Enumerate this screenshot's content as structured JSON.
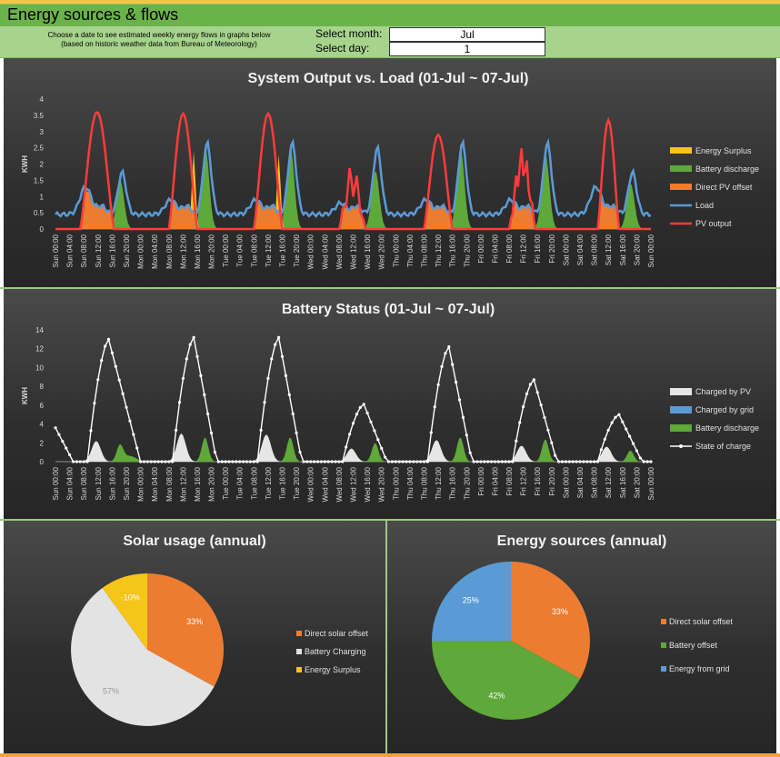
{
  "header": {
    "title": "Energy sources & flows",
    "hint_line1": "Choose a date to see estimated weekly energy flows in graphs below",
    "hint_line2": "(based on historic weather data from Bureau of Meteorology)",
    "month_label": "Select month:",
    "month_value": "Jul",
    "day_label": "Select day:",
    "day_value": "1"
  },
  "chart_data": [
    {
      "type": "area",
      "title": "System Output vs. Load (01-Jul ~ 07-Jul)",
      "ylabel": "KWH",
      "ylim": [
        0,
        4
      ],
      "yticks": [
        "0",
        "0.5",
        "1",
        "1.5",
        "2",
        "2.5",
        "3",
        "3.5",
        "4"
      ],
      "legend_position": "right",
      "x_labels": [
        "Sun 00:00",
        "Sun 04:00",
        "Sun 08:00",
        "Sun 12:00",
        "Sun 16:00",
        "Sun 20:00",
        "Mon 00:00",
        "Mon 04:00",
        "Mon 08:00",
        "Mon 12:00",
        "Mon 16:00",
        "Mon 20:00",
        "Tue 00:00",
        "Tue 04:00",
        "Tue 08:00",
        "Tue 12:00",
        "Tue 16:00",
        "Tue 20:00",
        "Wed 00:00",
        "Wed 04:00",
        "Wed 08:00",
        "Wed 12:00",
        "Wed 16:00",
        "Wed 20:00",
        "Thu 00:00",
        "Thu 04:00",
        "Thu 08:00",
        "Thu 12:00",
        "Thu 16:00",
        "Thu 20:00",
        "Fri 00:00",
        "Fri 04:00",
        "Fri 08:00",
        "Fri 12:00",
        "Fri 16:00",
        "Fri 20:00",
        "Sat 00:00",
        "Sat 04:00",
        "Sat 08:00",
        "Sat 12:00",
        "Sat 16:00",
        "Sat 20:00",
        "Sun 00:00"
      ],
      "days": [
        {
          "pv_peak": 3.6,
          "pv_start": 7,
          "pv_end": 16.5,
          "load_am": 1.3,
          "load_pm": 1.75,
          "batt_peak": 1.5,
          "surplus_peak": 0
        },
        {
          "pv_peak": 3.55,
          "pv_start": 8,
          "pv_end": 16,
          "load_am": 0.9,
          "load_pm": 2.65,
          "batt_peak": 2.55,
          "surplus_peak": 2.4
        },
        {
          "pv_peak": 3.55,
          "pv_start": 8,
          "pv_end": 16,
          "load_am": 0.9,
          "load_pm": 2.65,
          "batt_peak": 2.55,
          "surplus_peak": 2.3
        },
        {
          "pv_peak": 2.0,
          "pv_start": 8,
          "pv_end": 15.5,
          "load_am": 0.8,
          "load_pm": 2.5,
          "batt_peak": 1.8,
          "surplus_peak": 0
        },
        {
          "pv_peak": 2.9,
          "pv_start": 8,
          "pv_end": 16,
          "load_am": 0.9,
          "load_pm": 2.65,
          "batt_peak": 2.5,
          "surplus_peak": 0
        },
        {
          "pv_peak": 2.55,
          "pv_start": 8,
          "pv_end": 15.5,
          "load_am": 0.9,
          "load_pm": 2.65,
          "batt_peak": 2.3,
          "surplus_peak": 0
        },
        {
          "pv_peak": 3.35,
          "pv_start": 9,
          "pv_end": 15,
          "load_am": 1.3,
          "load_pm": 1.75,
          "batt_peak": 1.4,
          "surplus_peak": 0
        }
      ],
      "series_names": [
        "Energy Surplus",
        "Battery discharge",
        "Direct PV offset",
        "Load",
        "PV output"
      ],
      "colors": {
        "surplus": "#f5c518",
        "battery": "#5fa83a",
        "direct": "#ec7c30",
        "load": "#5b9bd5",
        "pv": "#ff3b3b"
      }
    },
    {
      "type": "area",
      "title": "Battery Status (01-Jul ~ 07-Jul)",
      "ylabel": "KWH",
      "ylim": [
        0,
        14
      ],
      "yticks": [
        "0",
        "2",
        "4",
        "6",
        "8",
        "10",
        "12",
        "14"
      ],
      "legend_position": "right",
      "days": [
        {
          "soc_peak": 13.0,
          "pv_peak": 2.2,
          "batt_peak": 1.7,
          "start_soc": 3.6
        },
        {
          "soc_peak": 13.2,
          "pv_peak": 3.0,
          "batt_peak": 2.6,
          "start_soc": 0
        },
        {
          "soc_peak": 13.2,
          "pv_peak": 2.9,
          "batt_peak": 2.6,
          "start_soc": 0
        },
        {
          "soc_peak": 6.1,
          "pv_peak": 1.4,
          "batt_peak": 2.0,
          "start_soc": 0
        },
        {
          "soc_peak": 12.2,
          "pv_peak": 2.3,
          "batt_peak": 2.6,
          "start_soc": 0
        },
        {
          "soc_peak": 8.7,
          "pv_peak": 1.7,
          "batt_peak": 2.4,
          "start_soc": 0
        },
        {
          "soc_peak": 5.0,
          "pv_peak": 1.6,
          "batt_peak": 1.2,
          "start_soc": 0
        }
      ],
      "series_names": [
        "Charged by PV",
        "Charged by grid",
        "Battery discharge",
        "State of charge"
      ],
      "colors": {
        "pv": "#e6e6e6",
        "grid": "#5b9bd5",
        "battery": "#5fa83a",
        "soc": "#ffffff"
      }
    },
    {
      "type": "pie",
      "title": "Solar usage (annual)",
      "legend_position": "right",
      "slices": [
        {
          "label": "Direct solar offset",
          "value": 33,
          "text": "33%",
          "color": "#ec7c30"
        },
        {
          "label": "Battery Charging",
          "value": 57,
          "text": "57%",
          "color": "#e3e3e3"
        },
        {
          "label": "Energy Surplus",
          "value": 10,
          "text": "-10%",
          "color": "#f5c518"
        }
      ]
    },
    {
      "type": "pie",
      "title": "Energy sources (annual)",
      "legend_position": "right",
      "slices": [
        {
          "label": "Direct solar offset",
          "value": 33,
          "text": "33%",
          "color": "#ec7c30"
        },
        {
          "label": "Battery offset",
          "value": 42,
          "text": "42%",
          "color": "#5fa83a"
        },
        {
          "label": "Energy from grid",
          "value": 25,
          "text": "25%",
          "color": "#5b9bd5"
        }
      ]
    }
  ]
}
